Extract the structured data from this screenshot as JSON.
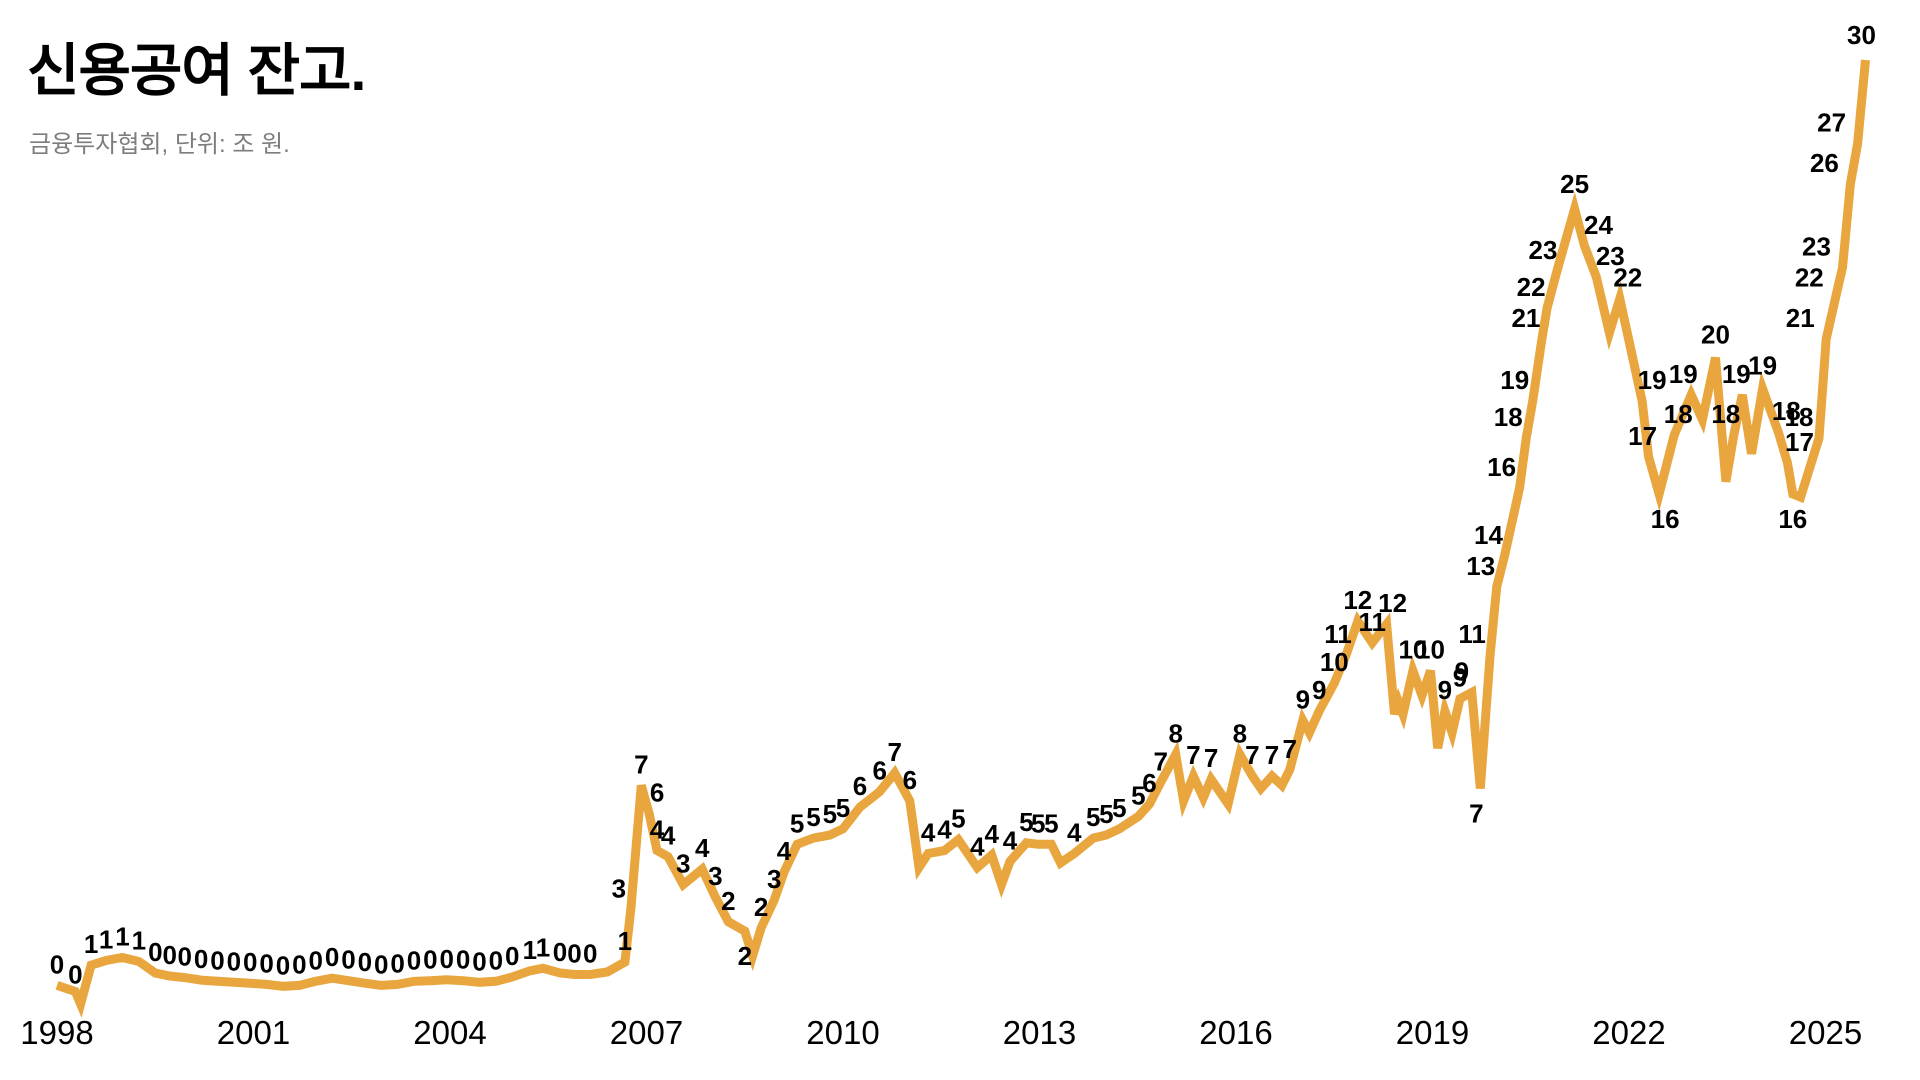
{
  "chart_data": {
    "type": "line",
    "title": "신용공여 잔고.",
    "source_note": "금융투자협회, 단위: 조  원.",
    "source": "금융투자협회",
    "unit": "조 원",
    "series_name": "신용공여 잔고",
    "grid": false,
    "legend": false,
    "line_color": "#E9A63E",
    "label_color": "#000000",
    "background_color": "#FFFFFF",
    "x_ticks": [
      "1998",
      "2001",
      "2004",
      "2007",
      "2010",
      "2013",
      "2016",
      "2019",
      "2022",
      "2025"
    ],
    "x_range": [
      1997.7,
      2025.95
    ],
    "y_range": [
      -1,
      31
    ],
    "points": [
      {
        "x": 1998.0,
        "v": 0.15,
        "l": "0"
      },
      {
        "x": 1998.28,
        "v": -0.05,
        "l": "0",
        "dy": -8
      },
      {
        "x": 1998.36,
        "v": -0.45,
        "l": null
      },
      {
        "x": 1998.52,
        "v": 0.8,
        "l": "1"
      },
      {
        "x": 1998.75,
        "v": 0.95,
        "l": "1"
      },
      {
        "x": 1999.0,
        "v": 1.05,
        "l": "1"
      },
      {
        "x": 1999.25,
        "v": 0.92,
        "l": "1"
      },
      {
        "x": 1999.5,
        "v": 0.55,
        "l": "0"
      },
      {
        "x": 1999.72,
        "v": 0.45,
        "l": "0"
      },
      {
        "x": 1999.95,
        "v": 0.4,
        "l": "0"
      },
      {
        "x": 2000.2,
        "v": 0.32,
        "l": "0"
      },
      {
        "x": 2000.45,
        "v": 0.28,
        "l": "0"
      },
      {
        "x": 2000.7,
        "v": 0.25,
        "l": "0"
      },
      {
        "x": 2000.95,
        "v": 0.22,
        "l": "0"
      },
      {
        "x": 2001.2,
        "v": 0.18,
        "l": "0"
      },
      {
        "x": 2001.45,
        "v": 0.12,
        "l": "0"
      },
      {
        "x": 2001.7,
        "v": 0.15,
        "l": "0"
      },
      {
        "x": 2001.95,
        "v": 0.28,
        "l": "0"
      },
      {
        "x": 2002.2,
        "v": 0.38,
        "l": "0"
      },
      {
        "x": 2002.45,
        "v": 0.3,
        "l": "0"
      },
      {
        "x": 2002.7,
        "v": 0.22,
        "l": "0"
      },
      {
        "x": 2002.95,
        "v": 0.15,
        "l": "0"
      },
      {
        "x": 2003.2,
        "v": 0.18,
        "l": "0"
      },
      {
        "x": 2003.45,
        "v": 0.28,
        "l": "0"
      },
      {
        "x": 2003.7,
        "v": 0.3,
        "l": "0"
      },
      {
        "x": 2003.95,
        "v": 0.33,
        "l": "0"
      },
      {
        "x": 2004.2,
        "v": 0.3,
        "l": "0"
      },
      {
        "x": 2004.45,
        "v": 0.25,
        "l": "0"
      },
      {
        "x": 2004.7,
        "v": 0.28,
        "l": "0"
      },
      {
        "x": 2004.95,
        "v": 0.42,
        "l": "0"
      },
      {
        "x": 2005.22,
        "v": 0.62,
        "l": "1"
      },
      {
        "x": 2005.42,
        "v": 0.7,
        "l": "1"
      },
      {
        "x": 2005.68,
        "v": 0.55,
        "l": "0"
      },
      {
        "x": 2005.9,
        "v": 0.5,
        "l": "0"
      },
      {
        "x": 2006.14,
        "v": 0.5,
        "l": "0"
      },
      {
        "x": 2006.4,
        "v": 0.58,
        "l": null
      },
      {
        "x": 2006.67,
        "v": 0.9,
        "l": "1"
      },
      {
        "x": 2006.76,
        "v": 2.6,
        "l": "3",
        "dx": -12
      },
      {
        "x": 2006.92,
        "v": 6.6,
        "l": "7"
      },
      {
        "x": 2007.04,
        "v": 5.7,
        "l": "6",
        "dx": 8
      },
      {
        "x": 2007.16,
        "v": 4.5,
        "l": "4"
      },
      {
        "x": 2007.33,
        "v": 4.3,
        "l": "4"
      },
      {
        "x": 2007.56,
        "v": 3.4,
        "l": "3"
      },
      {
        "x": 2007.85,
        "v": 3.9,
        "l": "4"
      },
      {
        "x": 2008.05,
        "v": 3.0,
        "l": "3"
      },
      {
        "x": 2008.25,
        "v": 2.2,
        "l": "2"
      },
      {
        "x": 2008.5,
        "v": 1.9,
        "l": "2",
        "b": 1
      },
      {
        "x": 2008.62,
        "v": 1.1,
        "l": null
      },
      {
        "x": 2008.75,
        "v": 2.0,
        "l": "2"
      },
      {
        "x": 2008.95,
        "v": 2.9,
        "l": "3"
      },
      {
        "x": 2009.1,
        "v": 3.8,
        "l": "4"
      },
      {
        "x": 2009.3,
        "v": 4.7,
        "l": "5"
      },
      {
        "x": 2009.55,
        "v": 4.9,
        "l": "5"
      },
      {
        "x": 2009.8,
        "v": 5.0,
        "l": "5"
      },
      {
        "x": 2010.0,
        "v": 5.2,
        "l": "5"
      },
      {
        "x": 2010.26,
        "v": 5.9,
        "l": "6"
      },
      {
        "x": 2010.56,
        "v": 6.4,
        "l": "6"
      },
      {
        "x": 2010.79,
        "v": 7.0,
        "l": "7"
      },
      {
        "x": 2011.02,
        "v": 6.1,
        "l": "6"
      },
      {
        "x": 2011.16,
        "v": 3.95,
        "l": null
      },
      {
        "x": 2011.3,
        "v": 4.4,
        "l": "4"
      },
      {
        "x": 2011.55,
        "v": 4.5,
        "l": "4"
      },
      {
        "x": 2011.76,
        "v": 4.85,
        "l": "5"
      },
      {
        "x": 2012.05,
        "v": 3.95,
        "l": "4"
      },
      {
        "x": 2012.27,
        "v": 4.35,
        "l": "4"
      },
      {
        "x": 2012.42,
        "v": 3.4,
        "l": null
      },
      {
        "x": 2012.55,
        "v": 4.15,
        "l": "4"
      },
      {
        "x": 2012.8,
        "v": 4.75,
        "l": "5"
      },
      {
        "x": 2012.98,
        "v": 4.7,
        "l": "5"
      },
      {
        "x": 2013.18,
        "v": 4.7,
        "l": "5"
      },
      {
        "x": 2013.32,
        "v": 4.1,
        "l": null
      },
      {
        "x": 2013.53,
        "v": 4.4,
        "l": "4"
      },
      {
        "x": 2013.82,
        "v": 4.9,
        "l": "5"
      },
      {
        "x": 2014.02,
        "v": 5.0,
        "l": "5"
      },
      {
        "x": 2014.22,
        "v": 5.2,
        "l": "5"
      },
      {
        "x": 2014.51,
        "v": 5.6,
        "l": "5"
      },
      {
        "x": 2014.68,
        "v": 6.0,
        "l": "6"
      },
      {
        "x": 2014.85,
        "v": 6.7,
        "l": "7"
      },
      {
        "x": 2015.08,
        "v": 7.6,
        "l": "8"
      },
      {
        "x": 2015.2,
        "v": 6.1,
        "l": null
      },
      {
        "x": 2015.35,
        "v": 6.9,
        "l": "7"
      },
      {
        "x": 2015.5,
        "v": 6.2,
        "l": null
      },
      {
        "x": 2015.62,
        "v": 6.8,
        "l": "7"
      },
      {
        "x": 2015.88,
        "v": 6.0,
        "l": null
      },
      {
        "x": 2016.06,
        "v": 7.6,
        "l": "8"
      },
      {
        "x": 2016.25,
        "v": 6.9,
        "l": "7"
      },
      {
        "x": 2016.38,
        "v": 6.5,
        "l": null
      },
      {
        "x": 2016.55,
        "v": 6.9,
        "l": "7"
      },
      {
        "x": 2016.7,
        "v": 6.6,
        "l": null
      },
      {
        "x": 2016.82,
        "v": 7.1,
        "l": "7"
      },
      {
        "x": 2017.02,
        "v": 8.7,
        "l": "9"
      },
      {
        "x": 2017.12,
        "v": 8.3,
        "l": null
      },
      {
        "x": 2017.27,
        "v": 9.0,
        "l": "9"
      },
      {
        "x": 2017.5,
        "v": 9.9,
        "l": "10"
      },
      {
        "x": 2017.68,
        "v": 10.8,
        "l": "11",
        "dx": -8
      },
      {
        "x": 2017.86,
        "v": 11.9,
        "l": "12"
      },
      {
        "x": 2018.08,
        "v": 11.2,
        "l": "11"
      },
      {
        "x": 2018.3,
        "v": 11.8,
        "l": "12",
        "dx": 6
      },
      {
        "x": 2018.42,
        "v": 8.9,
        "l": null
      },
      {
        "x": 2018.48,
        "v": 9.3,
        "l": null
      },
      {
        "x": 2018.55,
        "v": 8.9,
        "l": null
      },
      {
        "x": 2018.7,
        "v": 10.3,
        "l": "10"
      },
      {
        "x": 2018.84,
        "v": 9.5,
        "l": null
      },
      {
        "x": 2018.97,
        "v": 10.3,
        "l": "10"
      },
      {
        "x": 2019.08,
        "v": 7.8,
        "l": null
      },
      {
        "x": 2019.19,
        "v": 9.0,
        "l": "9"
      },
      {
        "x": 2019.3,
        "v": 8.3,
        "l": null
      },
      {
        "x": 2019.42,
        "v": 9.4,
        "l": "9"
      },
      {
        "x": 2019.6,
        "v": 9.6,
        "l": "9",
        "dx": -10
      },
      {
        "x": 2019.73,
        "v": 6.5,
        "l": "7",
        "b": 1,
        "dx": -4
      },
      {
        "x": 2019.88,
        "v": 10.8,
        "l": "11",
        "dx": -18
      },
      {
        "x": 2019.98,
        "v": 13.0,
        "l": "13",
        "dx": -16
      },
      {
        "x": 2020.1,
        "v": 14.0,
        "l": "14",
        "dx": -16
      },
      {
        "x": 2020.33,
        "v": 16.2,
        "l": "16",
        "dx": -18
      },
      {
        "x": 2020.43,
        "v": 17.8,
        "l": "18",
        "dx": -18
      },
      {
        "x": 2020.53,
        "v": 19.0,
        "l": "19",
        "dx": -18
      },
      {
        "x": 2020.67,
        "v": 21.0,
        "l": "21",
        "dx": -16
      },
      {
        "x": 2020.75,
        "v": 22.0,
        "l": "22",
        "dx": -16
      },
      {
        "x": 2020.9,
        "v": 23.2,
        "l": "23",
        "dx": -14
      },
      {
        "x": 2021.17,
        "v": 25.2,
        "l": "25",
        "dy": -16
      },
      {
        "x": 2021.32,
        "v": 24.0,
        "l": "24",
        "dx": 14
      },
      {
        "x": 2021.5,
        "v": 23.0,
        "l": "23",
        "dx": 14
      },
      {
        "x": 2021.7,
        "v": 21.2,
        "l": null
      },
      {
        "x": 2021.86,
        "v": 22.3,
        "l": "22",
        "dx": 8
      },
      {
        "x": 2022.2,
        "v": 19.0,
        "l": "19",
        "dx": 10
      },
      {
        "x": 2022.3,
        "v": 17.2,
        "l": "17",
        "dx": -6
      },
      {
        "x": 2022.46,
        "v": 16.0,
        "l": "16",
        "b": 1,
        "dx": 6
      },
      {
        "x": 2022.69,
        "v": 17.9,
        "l": "18",
        "dx": 4
      },
      {
        "x": 2022.95,
        "v": 19.2,
        "l": "19",
        "dx": -8
      },
      {
        "x": 2023.12,
        "v": 18.4,
        "l": null
      },
      {
        "x": 2023.32,
        "v": 20.4,
        "l": "20",
        "dy": -14
      },
      {
        "x": 2023.48,
        "v": 16.4,
        "l": null
      },
      {
        "x": 2023.6,
        "v": 17.9,
        "l": "18",
        "dx": -8
      },
      {
        "x": 2023.73,
        "v": 19.2,
        "l": "19",
        "dx": -6
      },
      {
        "x": 2023.87,
        "v": 17.3,
        "l": null
      },
      {
        "x": 2024.04,
        "v": 19.4,
        "l": "19",
        "dy": -14
      },
      {
        "x": 2024.28,
        "v": 18.0,
        "l": "18",
        "dx": 8
      },
      {
        "x": 2024.42,
        "v": 17.0,
        "l": "17",
        "dx": 12
      },
      {
        "x": 2024.5,
        "v": 16.0,
        "l": "16",
        "b": 1
      },
      {
        "x": 2024.62,
        "v": 15.9,
        "l": null
      },
      {
        "x": 2024.9,
        "v": 17.8,
        "l": "18",
        "dx": -20
      },
      {
        "x": 2025.01,
        "v": 21.0,
        "l": "21",
        "dx": -26
      },
      {
        "x": 2025.15,
        "v": 22.3,
        "l": "22",
        "dx": -26
      },
      {
        "x": 2025.26,
        "v": 23.3,
        "l": "23",
        "dx": -26
      },
      {
        "x": 2025.38,
        "v": 26.0,
        "l": "26",
        "dx": -26
      },
      {
        "x": 2025.49,
        "v": 27.3,
        "l": "27",
        "dx": -26
      },
      {
        "x": 2025.61,
        "v": 30.0,
        "l": "30",
        "dx": -4,
        "dy": -16
      }
    ]
  }
}
